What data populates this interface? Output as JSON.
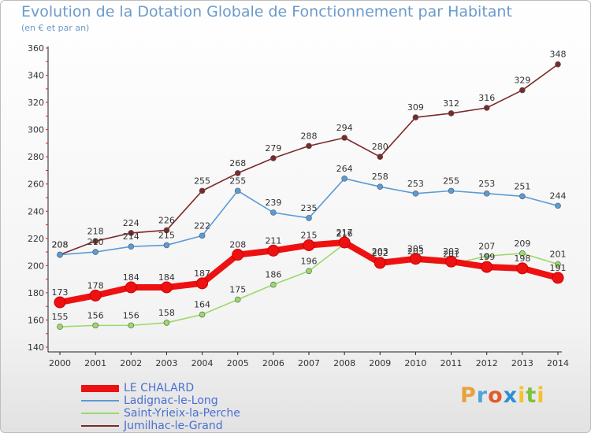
{
  "header": {
    "title": "Evolution de la Dotation Globale de Fonctionnement par Habitant",
    "subtitle": "(en € et par an)"
  },
  "brand": {
    "letters": [
      "P",
      "r",
      "o",
      "x",
      "i",
      "t",
      "i"
    ],
    "colors": [
      "#e8a23a",
      "#4fa6d8",
      "#e25a2b",
      "#2b8fd1",
      "#f2c230",
      "#7cc242",
      "#f2c230"
    ]
  },
  "chart_data": {
    "type": "line",
    "title": "Evolution de la Dotation Globale de Fonctionnement par Habitant",
    "subtitle": "(en € et par an)",
    "xlabel": "",
    "ylabel": "",
    "ylim": [
      140,
      360
    ],
    "yticks": [
      "140",
      "160",
      "180",
      "200",
      "220",
      "240",
      "260",
      "280",
      "300",
      "320",
      "340",
      "360"
    ],
    "x": [
      "2000",
      "2001",
      "2002",
      "2003",
      "2004",
      "2005",
      "2006",
      "2007",
      "2008",
      "2009",
      "2010",
      "2011",
      "2012",
      "2013",
      "2014"
    ],
    "grid": false,
    "legend_position": "bottom-left",
    "series": [
      {
        "name": "LE CHALARD",
        "color": "#ee1111",
        "values": [
          173,
          178,
          184,
          184,
          187,
          208,
          211,
          215,
          217,
          202,
          205,
          203,
          199,
          198,
          191
        ]
      },
      {
        "name": "Ladignac-le-Long",
        "color": "#5b9bd5",
        "values": [
          208,
          210,
          214,
          215,
          222,
          255,
          239,
          235,
          264,
          258,
          253,
          255,
          253,
          251,
          244
        ]
      },
      {
        "name": "Saint-Yrieix-la-Perche",
        "color": "#9bd96b",
        "values": [
          155,
          156,
          156,
          158,
          164,
          175,
          186,
          196,
          216,
          203,
          203,
          201,
          207,
          209,
          201
        ]
      },
      {
        "name": "Jumilhac-le-Grand",
        "color": "#7a2a2a",
        "values": [
          208,
          218,
          224,
          226,
          255,
          268,
          279,
          288,
          294,
          280,
          309,
          312,
          316,
          329,
          348
        ]
      }
    ]
  }
}
